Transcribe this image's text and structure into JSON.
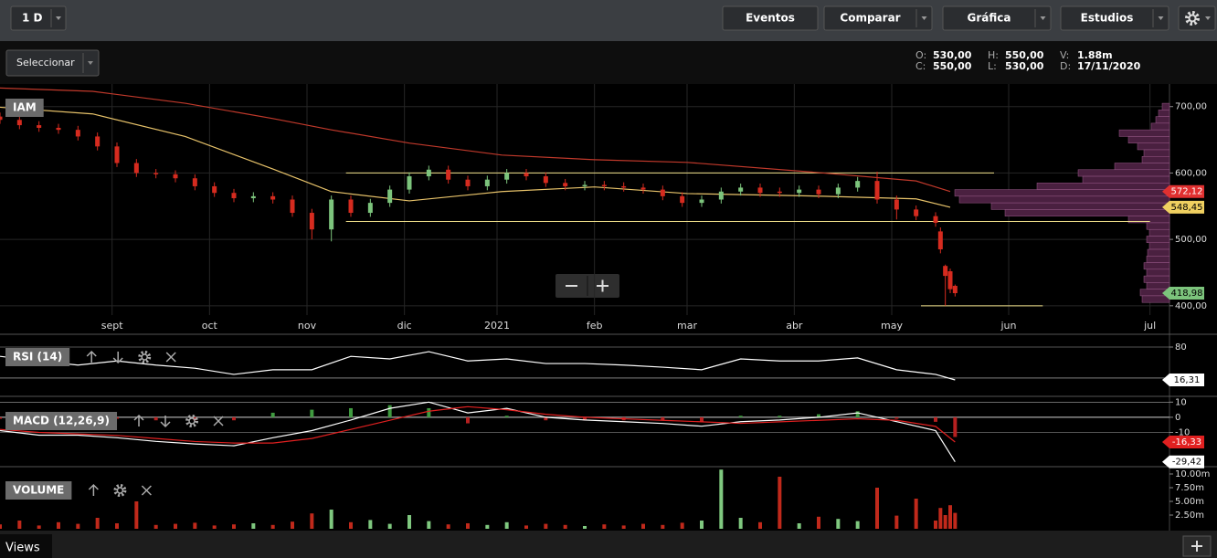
{
  "toolbar": {
    "interval": "1 D",
    "buttons": [
      "Eventos",
      "Comparar",
      "Gráfica",
      "Estudios"
    ]
  },
  "selector": "Seleccionar",
  "quote": {
    "labels": [
      "O:",
      "C:",
      "H:",
      "L:",
      "V:",
      "D:"
    ],
    "values": [
      "530,00",
      "550,00",
      "550,00",
      "530,00",
      "1.88m",
      "17/11/2020"
    ]
  },
  "chart_data": [
    {
      "type": "candlestick",
      "title": "IAM",
      "up_color": "#7cc47c",
      "down_color": "#d62b1f",
      "grid": true,
      "xlim": [
        0,
        240
      ],
      "xticks": [
        {
          "value": 23,
          "label": "sept"
        },
        {
          "value": 43,
          "label": "oct"
        },
        {
          "value": 63,
          "label": "nov"
        },
        {
          "value": 83,
          "label": "dic"
        },
        {
          "value": 102,
          "label": "2021"
        },
        {
          "value": 122,
          "label": "feb"
        },
        {
          "value": 141,
          "label": "mar"
        },
        {
          "value": 163,
          "label": "abr"
        },
        {
          "value": 183,
          "label": "may"
        },
        {
          "value": 207,
          "label": "jun"
        },
        {
          "value": 236,
          "label": "jul"
        }
      ],
      "ylim": [
        386,
        734
      ],
      "yticks": [
        {
          "value": 400,
          "label": "400,00"
        },
        {
          "value": 500,
          "label": "500,00"
        },
        {
          "value": 600,
          "label": "600,00"
        },
        {
          "value": 700,
          "label": "700,00"
        }
      ],
      "x": [
        0,
        4,
        8,
        12,
        16,
        20,
        24,
        28,
        32,
        36,
        40,
        44,
        48,
        52,
        56,
        60,
        64,
        68,
        72,
        76,
        80,
        84,
        88,
        92,
        96,
        100,
        104,
        108,
        112,
        116,
        120,
        124,
        128,
        132,
        136,
        140,
        144,
        148,
        152,
        156,
        160,
        164,
        168,
        172,
        176,
        180,
        184,
        188,
        192,
        193,
        194,
        195,
        196
      ],
      "open": [
        685,
        680,
        672,
        668,
        665,
        655,
        640,
        615,
        600,
        598,
        592,
        580,
        570,
        562,
        565,
        560,
        540,
        515,
        560,
        540,
        555,
        575,
        595,
        605,
        590,
        580,
        590,
        600,
        595,
        585,
        580,
        582,
        580,
        578,
        575,
        565,
        555,
        560,
        572,
        578,
        572,
        570,
        575,
        568,
        578,
        588,
        560,
        545,
        535,
        512,
        460,
        452,
        430
      ],
      "high": [
        691,
        686,
        678,
        674,
        671,
        661,
        646,
        621,
        606,
        604,
        598,
        586,
        576,
        571,
        571,
        566,
        546,
        566,
        566,
        561,
        581,
        601,
        611,
        611,
        596,
        596,
        606,
        606,
        601,
        591,
        588,
        588,
        586,
        584,
        581,
        571,
        566,
        578,
        584,
        584,
        578,
        581,
        581,
        584,
        594,
        602,
        566,
        551,
        541,
        518,
        462,
        456,
        432
      ],
      "low": [
        674,
        666,
        662,
        659,
        649,
        634,
        609,
        594,
        592,
        586,
        574,
        564,
        556,
        556,
        554,
        534,
        500,
        497,
        534,
        534,
        549,
        569,
        589,
        584,
        574,
        574,
        584,
        589,
        579,
        574,
        574,
        574,
        572,
        569,
        559,
        549,
        549,
        554,
        566,
        564,
        564,
        564,
        562,
        562,
        572,
        554,
        530,
        529,
        519,
        479,
        400,
        419,
        414
      ],
      "close": [
        680,
        672,
        668,
        665,
        655,
        640,
        615,
        600,
        598,
        592,
        580,
        570,
        562,
        565,
        560,
        540,
        515,
        560,
        540,
        555,
        575,
        595,
        605,
        590,
        580,
        590,
        600,
        595,
        585,
        580,
        582,
        580,
        578,
        575,
        565,
        555,
        560,
        572,
        578,
        570,
        570,
        575,
        568,
        578,
        588,
        560,
        545,
        535,
        525,
        485,
        445,
        425,
        419
      ],
      "lines": [
        {
          "color": "#c0392b",
          "x": [
            0,
            19,
            38,
            56,
            68,
            84,
            103,
            122,
            141,
            169,
            188,
            195
          ],
          "values": [
            728,
            723,
            705,
            682,
            665,
            645,
            627,
            620,
            616,
            600,
            588,
            572.12
          ]
        },
        {
          "color": "#e8c36a",
          "x": [
            0,
            19,
            38,
            56,
            68,
            84,
            103,
            122,
            141,
            169,
            188,
            195
          ],
          "values": [
            699,
            689,
            655,
            606,
            572,
            558,
            572,
            579,
            569,
            565,
            561,
            548.45
          ]
        }
      ],
      "hlines": [
        {
          "value": 600,
          "x": [
            71,
            204
          ],
          "color": "#f0e08a"
        },
        {
          "value": 527,
          "x": [
            71,
            236
          ],
          "color": "#f0e08a"
        },
        {
          "value": 400,
          "x": [
            189,
            214
          ],
          "color": "#f0e08a"
        }
      ],
      "volume_profile": {
        "fill": "#4a2040",
        "stroke": "#9a5a8a",
        "prices": [
          700,
          690,
          680,
          670,
          660,
          650,
          640,
          630,
          620,
          610,
          600,
          590,
          580,
          570,
          560,
          550,
          540,
          530,
          520,
          510,
          500,
          490,
          480,
          470,
          460,
          450,
          440,
          430,
          420,
          410
        ],
        "values": [
          8,
          12,
          15,
          20,
          55,
          45,
          35,
          28,
          30,
          60,
          100,
          95,
          145,
          235,
          230,
          195,
          180,
          45,
          25,
          22,
          25,
          22,
          24,
          25,
          28,
          25,
          28,
          25,
          32,
          30
        ]
      },
      "last_labels": [
        {
          "value": 572.12,
          "label": "572,12",
          "color": "#e03030",
          "text_color": "#ffffff"
        },
        {
          "value": 548.45,
          "label": "548,45",
          "color": "#f0d060",
          "text_color": "#000000"
        },
        {
          "value": 418.98,
          "label": "418,98",
          "color": "#7cc47c",
          "text_color": "#000000"
        }
      ]
    },
    {
      "type": "line",
      "title": "RSI (14)",
      "xlim": [
        0,
        240
      ],
      "ylim": [
        -12,
        103
      ],
      "yticks": [
        80
      ],
      "levels": [
        20
      ],
      "x": [
        0,
        8,
        16,
        24,
        32,
        40,
        48,
        56,
        64,
        72,
        80,
        88,
        96,
        104,
        112,
        120,
        128,
        136,
        144,
        152,
        160,
        168,
        176,
        184,
        192,
        196
      ],
      "series": [
        {
          "color": "#ffffff",
          "values": [
            62,
            53,
            45,
            53,
            45,
            39,
            27,
            36,
            36,
            62,
            57,
            71,
            53,
            57,
            48,
            48,
            45,
            41,
            36,
            57,
            53,
            53,
            59,
            36,
            27,
            16.31
          ]
        }
      ],
      "last_labels": [
        {
          "value": 16.31,
          "label": "16,31",
          "color": "#ffffff",
          "text_color": "#000000"
        }
      ]
    },
    {
      "type": "line",
      "title": "MACD (12,26,9)",
      "xlim": [
        0,
        240
      ],
      "ylim": [
        -32,
        12
      ],
      "yticks": [
        -10,
        0,
        10
      ],
      "levels": [],
      "x": [
        0,
        8,
        16,
        24,
        32,
        40,
        48,
        56,
        64,
        72,
        80,
        88,
        96,
        104,
        112,
        120,
        128,
        136,
        144,
        152,
        160,
        168,
        176,
        184,
        192,
        196
      ],
      "series": [
        {
          "color": "#ffffff",
          "values": [
            -8.8,
            -11.8,
            -11.8,
            -13.5,
            -15.9,
            -17.6,
            -18.8,
            -13.5,
            -8.8,
            -1.8,
            5.9,
            10,
            2.9,
            5.9,
            0,
            -1.8,
            -2.9,
            -4.1,
            -5.9,
            -2.9,
            -1.8,
            0,
            2.9,
            -2.9,
            -8.8,
            -29.42
          ]
        },
        {
          "color": "#e02020",
          "values": [
            -8,
            -10,
            -11,
            -12,
            -14,
            -16,
            -17,
            -17,
            -14,
            -8,
            -2,
            4,
            7,
            5,
            2,
            0,
            -1,
            -2,
            -3,
            -4,
            -3,
            -2,
            -1,
            -2,
            -6,
            -16.33
          ]
        }
      ],
      "histogram": {
        "up_color": "#3f9a3f",
        "down_color": "#b52020",
        "values": [
          -1,
          -2,
          -1,
          -1,
          -2,
          -2,
          -2,
          3,
          5,
          6,
          8,
          6,
          -4,
          1,
          -2,
          -2,
          -2,
          -2,
          -3,
          1,
          1,
          2,
          4,
          -1,
          -3,
          -13
        ]
      },
      "last_labels": [
        {
          "value": -16.33,
          "label": "-16,33",
          "color": "#e02020",
          "text_color": "#ffffff"
        },
        {
          "value": -29.42,
          "label": "-29,42",
          "color": "#ffffff",
          "text_color": "#000000"
        }
      ]
    },
    {
      "type": "bar",
      "title": "VOLUME",
      "xlim": [
        0,
        240
      ],
      "ylim": [
        0,
        11
      ],
      "yticks": [
        {
          "value": 2.5,
          "label": "2.50m"
        },
        {
          "value": 5,
          "label": "5.00m"
        },
        {
          "value": 7.5,
          "label": "7.50m"
        },
        {
          "value": 10,
          "label": "10.00m"
        }
      ],
      "x": [
        0,
        4,
        8,
        12,
        16,
        20,
        24,
        28,
        32,
        36,
        40,
        44,
        48,
        52,
        56,
        60,
        64,
        68,
        72,
        76,
        80,
        84,
        88,
        92,
        96,
        100,
        104,
        108,
        112,
        116,
        120,
        124,
        128,
        132,
        136,
        140,
        144,
        148,
        152,
        156,
        160,
        164,
        168,
        172,
        176,
        180,
        184,
        188,
        192,
        193,
        194,
        195,
        196
      ],
      "values": [
        0.8,
        1.5,
        0.6,
        1.2,
        0.9,
        2,
        1,
        5,
        0.7,
        0.9,
        1.1,
        0.6,
        0.8,
        1,
        0.7,
        1.3,
        2.8,
        3.5,
        1.2,
        1.6,
        0.9,
        2.5,
        1.4,
        0.8,
        1,
        0.7,
        1.2,
        0.6,
        0.9,
        0.7,
        0.5,
        0.8,
        0.6,
        0.9,
        0.7,
        1.1,
        1.5,
        10.8,
        2,
        1.2,
        9.5,
        1,
        2.2,
        1.8,
        1.4,
        7.5,
        2.4,
        5.5,
        1.5,
        3.8,
        2.5,
        4.3,
        2.9
      ]
    }
  ],
  "footer": {
    "tab": "Views"
  }
}
